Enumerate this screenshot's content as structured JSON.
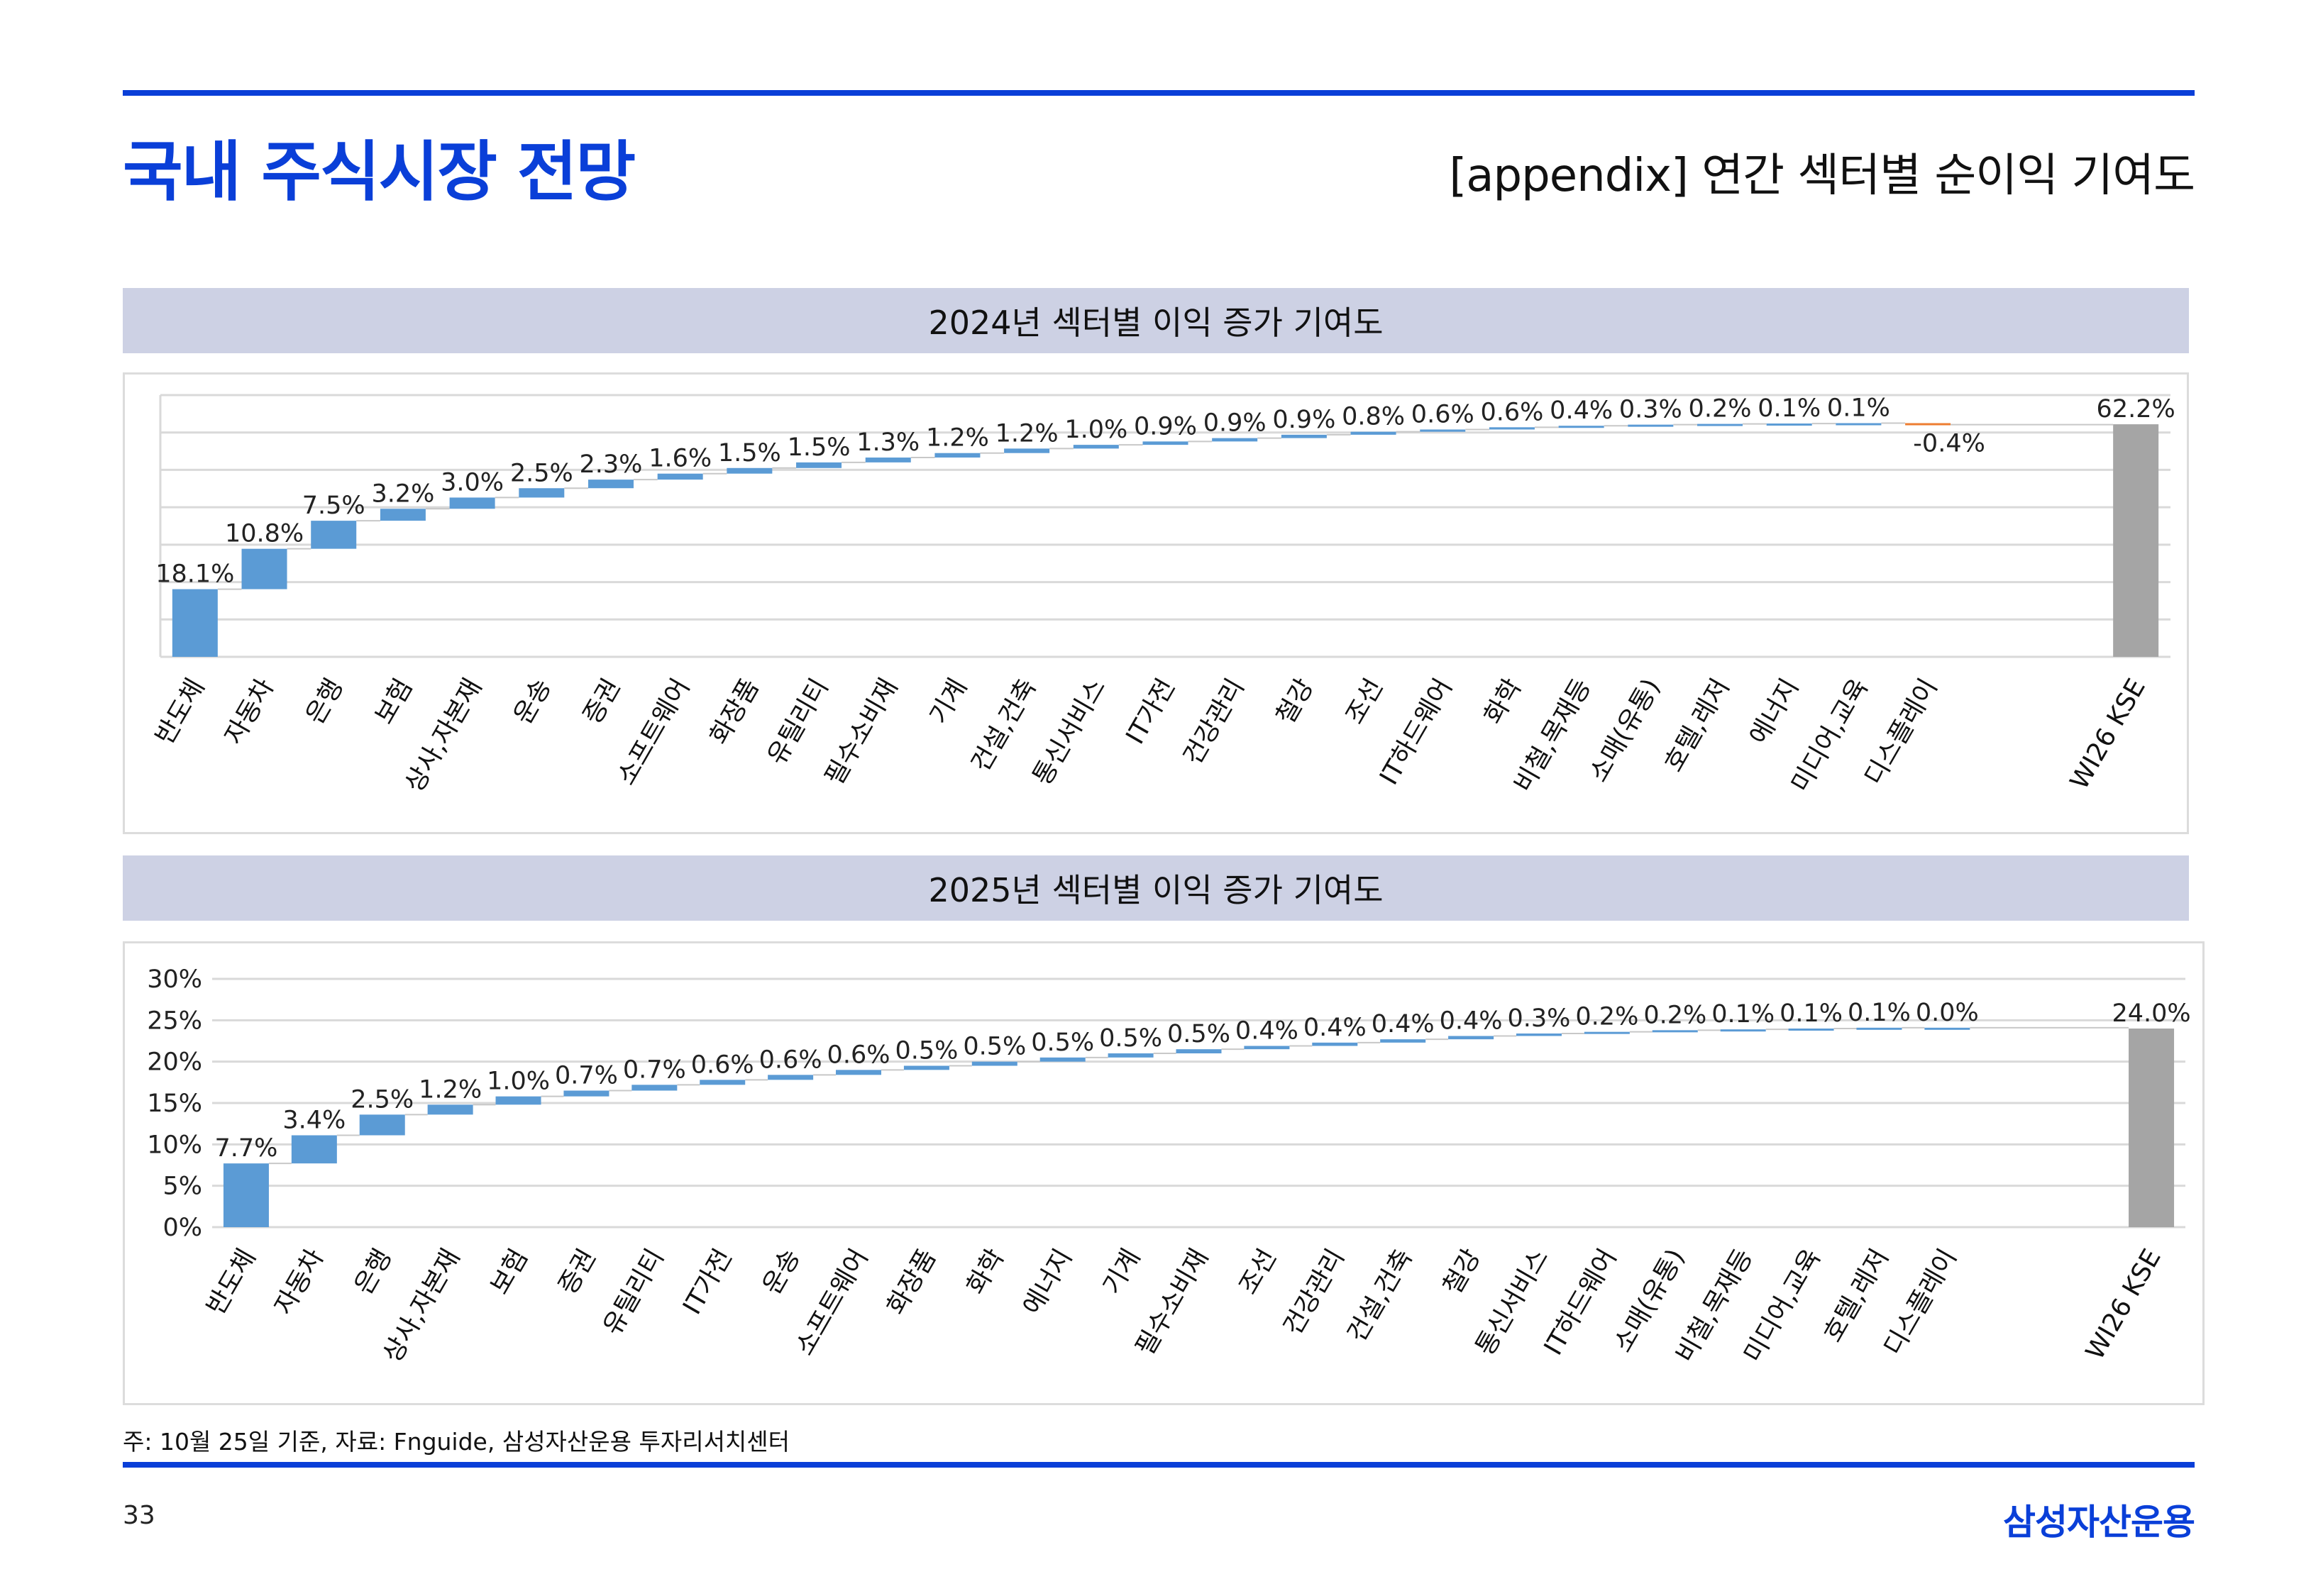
{
  "header": {
    "title": "국내 주식시장 전망",
    "subtitle": "[appendix] 연간 섹터별 순이익 기여도"
  },
  "colors": {
    "accent": "#0a3fd8",
    "bar": "#5b9bd5",
    "total": "#a5a5a5",
    "band": "#cdd1e4",
    "negative": "#ed7d31"
  },
  "chart_data": [
    {
      "type": "bar",
      "subtype": "waterfall",
      "title": "2024년 섹터별 이익 증가 기여도",
      "categories": [
        "반도체",
        "자동차",
        "은행",
        "보험",
        "상사,자본재",
        "운송",
        "증권",
        "소프트웨어",
        "화장품",
        "유틸리티",
        "필수소비재",
        "기계",
        "건설,건축",
        "통신서비스",
        "IT가전",
        "건강관리",
        "철강",
        "조선",
        "IT하드웨어",
        "화학",
        "비철,목재등",
        "소매(유통)",
        "호텔,레저",
        "에너지",
        "미디어,교육",
        "디스플레이"
      ],
      "values": [
        18.1,
        10.8,
        7.5,
        3.2,
        3.0,
        2.5,
        2.3,
        1.6,
        1.5,
        1.5,
        1.3,
        1.2,
        1.2,
        1.0,
        0.9,
        0.9,
        0.9,
        0.8,
        0.6,
        0.6,
        0.4,
        0.3,
        0.2,
        0.1,
        0.1,
        -0.4
      ],
      "labels": [
        "18.1%",
        "10.8%",
        "7.5%",
        "3.2%",
        "3.0%",
        "2.5%",
        "2.3%",
        "1.6%",
        "1.5%",
        "1.5%",
        "1.3%",
        "1.2%",
        "1.2%",
        "1.0%",
        "0.9%",
        "0.9%",
        "0.9%",
        "0.8%",
        "0.6%",
        "0.6%",
        "0.4%",
        "0.3%",
        "0.2%",
        "0.1%",
        "0.1%",
        "-0.4%"
      ],
      "total": {
        "category": "WI26 KSE",
        "value": 62.2,
        "label": "62.2%"
      },
      "ylim": [
        0,
        70
      ],
      "ystep": 10,
      "show_ytick_labels": false,
      "yticks": [],
      "grid": true
    },
    {
      "type": "bar",
      "subtype": "waterfall",
      "title": "2025년 섹터별 이익 증가 기여도",
      "categories": [
        "반도체",
        "자동차",
        "은행",
        "상사,자본재",
        "보험",
        "증권",
        "유틸리티",
        "IT가전",
        "운송",
        "소프트웨어",
        "화장품",
        "화학",
        "에너지",
        "기계",
        "필수소비재",
        "조선",
        "건강관리",
        "건설,건축",
        "철강",
        "통신서비스",
        "IT하드웨어",
        "소매(유통)",
        "비철,목재등",
        "미디어,교육",
        "호텔,레저",
        "디스플레이"
      ],
      "values": [
        7.7,
        3.4,
        2.5,
        1.2,
        1.0,
        0.7,
        0.7,
        0.6,
        0.6,
        0.6,
        0.5,
        0.5,
        0.5,
        0.5,
        0.5,
        0.4,
        0.4,
        0.4,
        0.4,
        0.3,
        0.2,
        0.2,
        0.1,
        0.1,
        0.1,
        0.0
      ],
      "labels": [
        "7.7%",
        "3.4%",
        "2.5%",
        "1.2%",
        "1.0%",
        "0.7%",
        "0.7%",
        "0.6%",
        "0.6%",
        "0.6%",
        "0.5%",
        "0.5%",
        "0.5%",
        "0.5%",
        "0.5%",
        "0.4%",
        "0.4%",
        "0.4%",
        "0.4%",
        "0.3%",
        "0.2%",
        "0.2%",
        "0.1%",
        "0.1%",
        "0.1%",
        "0.0%"
      ],
      "total": {
        "category": "WI26 KSE",
        "value": 24.0,
        "label": "24.0%"
      },
      "ylim": [
        0,
        30
      ],
      "ystep": 5,
      "show_ytick_labels": true,
      "yticks": [
        "0%",
        "5%",
        "10%",
        "15%",
        "20%",
        "25%",
        "30%"
      ],
      "grid": true
    }
  ],
  "footer": {
    "note": "주: 10월 25일 기준, 자료: Fnguide, 삼성자산운용 투자리서치센터",
    "page_number": "33",
    "logo": "삼성자산운용"
  }
}
